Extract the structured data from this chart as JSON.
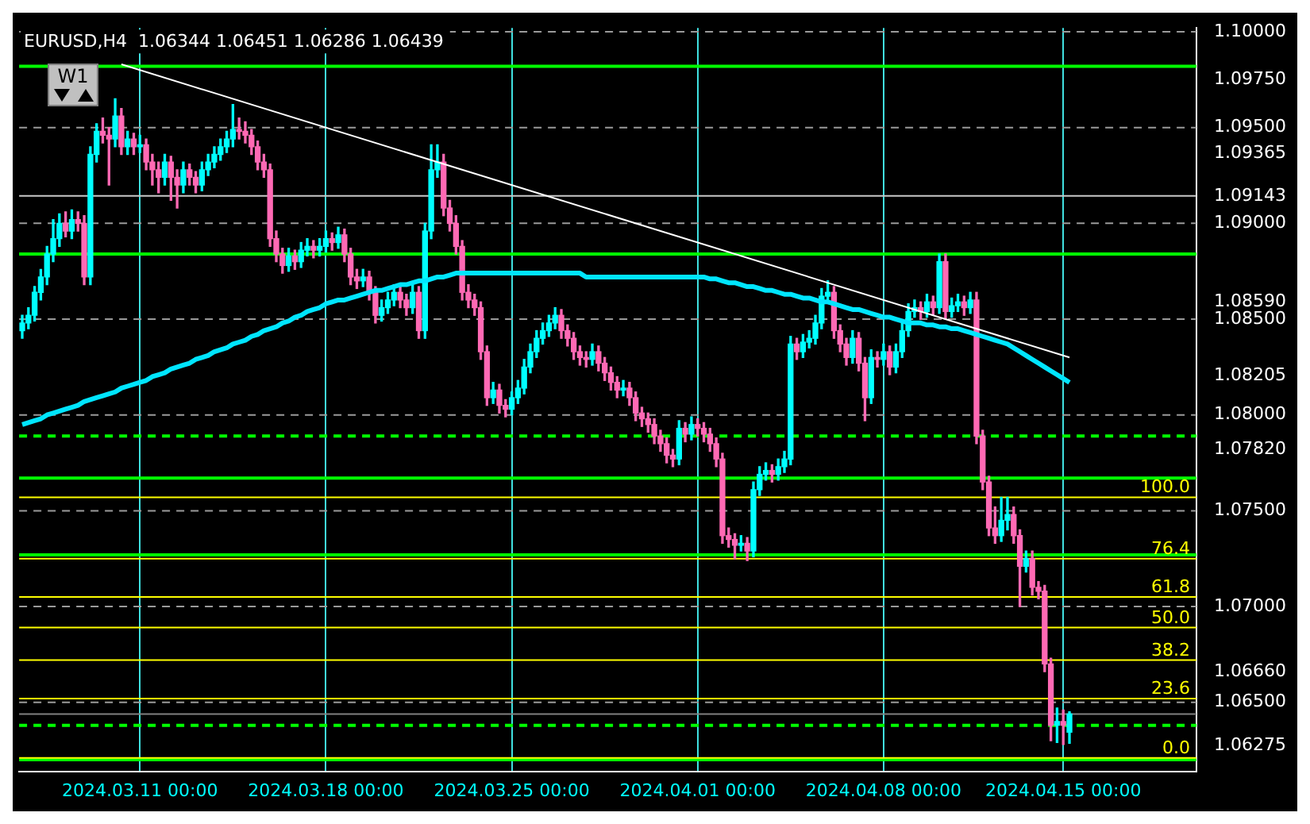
{
  "chart_data": {
    "type": "candlestick",
    "annotations": [
      "EURUSD,H4  1.06344 1.06451 1.06286 1.06439",
      "W1",
      {
        "text": "100.0",
        "y": 1.0757
      },
      {
        "text": "76.4",
        "y": 1.0725
      },
      {
        "text": "61.8",
        "y": 1.0705
      },
      {
        "text": "50.0",
        "y": 1.0689
      },
      {
        "text": "38.2",
        "y": 1.0672
      },
      {
        "text": "23.6",
        "y": 1.0652
      },
      {
        "text": "0.0",
        "y": 1.0621
      }
    ],
    "categories": [
      null,
      null,
      null,
      null,
      null,
      null,
      null,
      null,
      null,
      null,
      null,
      null,
      null,
      null,
      null,
      null,
      null,
      null,
      null,
      "2024.03.11 00:00",
      null,
      null,
      null,
      null,
      null,
      null,
      null,
      null,
      null,
      null,
      null,
      null,
      null,
      null,
      null,
      null,
      null,
      null,
      null,
      null,
      null,
      null,
      null,
      null,
      null,
      null,
      null,
      null,
      null,
      "2024.03.18 00:00",
      null,
      null,
      null,
      null,
      null,
      null,
      null,
      null,
      null,
      null,
      null,
      null,
      null,
      null,
      null,
      null,
      null,
      null,
      null,
      null,
      null,
      null,
      null,
      null,
      null,
      null,
      null,
      null,
      null,
      "2024.03.25 00:00",
      null,
      null,
      null,
      null,
      null,
      null,
      null,
      null,
      null,
      null,
      null,
      null,
      null,
      null,
      null,
      null,
      null,
      null,
      null,
      null,
      null,
      null,
      null,
      null,
      null,
      null,
      null,
      null,
      null,
      "2024.04.01 00:00",
      null,
      null,
      null,
      null,
      null,
      null,
      null,
      null,
      null,
      null,
      null,
      null,
      null,
      null,
      null,
      null,
      null,
      null,
      null,
      null,
      null,
      null,
      null,
      null,
      null,
      null,
      null,
      null,
      null,
      "2024.04.08 00:00",
      null,
      null,
      null,
      null,
      null,
      null,
      null,
      null,
      null,
      null,
      null,
      null,
      null,
      null,
      null,
      null,
      null,
      null,
      null,
      null,
      null,
      null,
      null,
      null,
      null,
      null,
      null,
      null,
      "2024.04.15 00:00",
      null,
      null,
      null,
      null,
      null,
      null,
      null,
      null,
      null,
      null,
      null,
      null,
      null,
      null,
      null,
      null,
      null,
      null,
      null,
      null,
      null
    ],
    "ohlc": [
      [
        1.0844,
        1.0852,
        1.084,
        1.0848
      ],
      [
        1.0848,
        1.0856,
        1.0845,
        1.0852
      ],
      [
        1.0852,
        1.0867,
        1.0849,
        1.0864
      ],
      [
        1.0864,
        1.0876,
        1.086,
        1.0872
      ],
      [
        1.0872,
        1.0888,
        1.0868,
        1.0884
      ],
      [
        1.0884,
        1.0902,
        1.088,
        1.0892
      ],
      [
        1.0892,
        1.0905,
        1.0888,
        1.09
      ],
      [
        1.09,
        1.0906,
        1.0893,
        1.0896
      ],
      [
        1.0896,
        1.0907,
        1.0892,
        1.0902
      ],
      [
        1.0902,
        1.0906,
        1.0896,
        1.09
      ],
      [
        1.09,
        1.0904,
        1.0868,
        1.0872
      ],
      [
        1.0872,
        1.094,
        1.0868,
        1.0936
      ],
      [
        1.0936,
        1.0952,
        1.0932,
        1.0948
      ],
      [
        1.0948,
        1.0955,
        1.0942,
        1.0946
      ],
      [
        1.0946,
        1.095,
        1.092,
        1.0944
      ],
      [
        1.0944,
        1.0965,
        1.094,
        1.0956
      ],
      [
        1.0956,
        1.096,
        1.0936,
        1.094
      ],
      [
        1.094,
        1.0948,
        1.0936,
        1.0944
      ],
      [
        1.0944,
        1.0947,
        1.0936,
        1.094
      ],
      [
        1.094,
        1.0946,
        1.0937,
        1.0941
      ],
      [
        1.0941,
        1.0944,
        1.0928,
        1.0932
      ],
      [
        1.0932,
        1.0936,
        1.092,
        1.0928
      ],
      [
        1.0928,
        1.0932,
        1.0916,
        1.0924
      ],
      [
        1.0924,
        1.0936,
        1.092,
        1.0932
      ],
      [
        1.0932,
        1.0935,
        1.0912,
        1.0924
      ],
      [
        1.0924,
        1.0928,
        1.0908,
        1.092
      ],
      [
        1.092,
        1.0932,
        1.0916,
        1.0928
      ],
      [
        1.0928,
        1.0931,
        1.092,
        1.0924
      ],
      [
        1.0924,
        1.0927,
        1.0916,
        1.092
      ],
      [
        1.092,
        1.0932,
        1.0917,
        1.0928
      ],
      [
        1.0928,
        1.0936,
        1.0925,
        1.0932
      ],
      [
        1.0932,
        1.094,
        1.0929,
        1.0936
      ],
      [
        1.0936,
        1.0944,
        1.0933,
        1.094
      ],
      [
        1.094,
        1.0948,
        1.0937,
        1.0944
      ],
      [
        1.0944,
        1.0962,
        1.094,
        1.0949
      ],
      [
        1.0949,
        1.0955,
        1.0944,
        1.0948
      ],
      [
        1.0948,
        1.0953,
        1.0942,
        1.0946
      ],
      [
        1.0946,
        1.0949,
        1.0936,
        1.094
      ],
      [
        1.094,
        1.0943,
        1.0928,
        1.0932
      ],
      [
        1.0932,
        1.0936,
        1.0924,
        1.0928
      ],
      [
        1.0928,
        1.0931,
        1.0888,
        1.0892
      ],
      [
        1.0892,
        1.0896,
        1.088,
        1.0884
      ],
      [
        1.0884,
        1.0887,
        1.0874,
        1.0878
      ],
      [
        1.0878,
        1.0887,
        1.0875,
        1.0883
      ],
      [
        1.0883,
        1.0886,
        1.0876,
        1.088
      ],
      [
        1.088,
        1.089,
        1.0877,
        1.0886
      ],
      [
        1.0886,
        1.0892,
        1.0883,
        1.0888
      ],
      [
        1.0888,
        1.0891,
        1.0882,
        1.0886
      ],
      [
        1.0886,
        1.0892,
        1.0883,
        1.0888
      ],
      [
        1.0888,
        1.0896,
        1.0885,
        1.0892
      ],
      [
        1.0892,
        1.0895,
        1.0886,
        1.089
      ],
      [
        1.089,
        1.0898,
        1.0887,
        1.0894
      ],
      [
        1.0894,
        1.0897,
        1.088,
        1.0884
      ],
      [
        1.0884,
        1.0887,
        1.0868,
        1.0872
      ],
      [
        1.0872,
        1.0876,
        1.0866,
        1.087
      ],
      [
        1.087,
        1.0876,
        1.0867,
        1.0872
      ],
      [
        1.0872,
        1.0875,
        1.086,
        1.0864
      ],
      [
        1.0864,
        1.0867,
        1.0848,
        1.0852
      ],
      [
        1.0852,
        1.086,
        1.0849,
        1.0856
      ],
      [
        1.0856,
        1.0864,
        1.0853,
        1.086
      ],
      [
        1.086,
        1.0868,
        1.0857,
        1.0864
      ],
      [
        1.0864,
        1.0867,
        1.0856,
        1.086
      ],
      [
        1.086,
        1.0863,
        1.0852,
        1.0856
      ],
      [
        1.0856,
        1.0868,
        1.0853,
        1.0864
      ],
      [
        1.0864,
        1.0867,
        1.084,
        1.0844
      ],
      [
        1.0844,
        1.09,
        1.084,
        1.0896
      ],
      [
        1.0896,
        1.0941,
        1.0892,
        1.0928
      ],
      [
        1.0928,
        1.0941,
        1.0924,
        1.0932
      ],
      [
        1.0932,
        1.0936,
        1.0904,
        1.0908
      ],
      [
        1.0908,
        1.0912,
        1.0896,
        1.09
      ],
      [
        1.09,
        1.0904,
        1.0884,
        1.0888
      ],
      [
        1.0888,
        1.0891,
        1.086,
        1.0864
      ],
      [
        1.0864,
        1.0868,
        1.0856,
        1.086
      ],
      [
        1.086,
        1.0863,
        1.0852,
        1.0856
      ],
      [
        1.0856,
        1.0859,
        1.0829,
        1.0833
      ],
      [
        1.0833,
        1.0836,
        1.0805,
        1.0809
      ],
      [
        1.0809,
        1.0817,
        1.0806,
        1.0813
      ],
      [
        1.0813,
        1.0816,
        1.0801,
        1.0805
      ],
      [
        1.0805,
        1.0808,
        1.0799,
        1.0803
      ],
      [
        1.0803,
        1.0812,
        1.08,
        1.0809
      ],
      [
        1.0809,
        1.0818,
        1.0806,
        1.0814
      ],
      [
        1.0814,
        1.0829,
        1.0811,
        1.0825
      ],
      [
        1.0825,
        1.0837,
        1.0822,
        1.0833
      ],
      [
        1.0833,
        1.0844,
        1.083,
        1.084
      ],
      [
        1.084,
        1.0848,
        1.0837,
        1.0844
      ],
      [
        1.0844,
        1.0852,
        1.0841,
        1.0848
      ],
      [
        1.0848,
        1.0856,
        1.0845,
        1.0852
      ],
      [
        1.0852,
        1.0855,
        1.084,
        1.0844
      ],
      [
        1.0844,
        1.0847,
        1.0836,
        1.084
      ],
      [
        1.084,
        1.0843,
        1.0829,
        1.0833
      ],
      [
        1.0833,
        1.0836,
        1.0826,
        1.083
      ],
      [
        1.083,
        1.0833,
        1.0825,
        1.0829
      ],
      [
        1.0829,
        1.0837,
        1.0826,
        1.0833
      ],
      [
        1.0833,
        1.0836,
        1.0823,
        1.0827
      ],
      [
        1.0827,
        1.083,
        1.0818,
        1.0822
      ],
      [
        1.0822,
        1.0825,
        1.0813,
        1.0817
      ],
      [
        1.0817,
        1.082,
        1.0809,
        1.0813
      ],
      [
        1.0813,
        1.0818,
        1.081,
        1.0814
      ],
      [
        1.0814,
        1.0817,
        1.0805,
        1.0809
      ],
      [
        1.0809,
        1.0812,
        1.0797,
        1.0801
      ],
      [
        1.0801,
        1.0804,
        1.0794,
        1.0798
      ],
      [
        1.0798,
        1.0801,
        1.0791,
        1.0795
      ],
      [
        1.0795,
        1.0798,
        1.0785,
        1.0789
      ],
      [
        1.0789,
        1.0792,
        1.0781,
        1.0785
      ],
      [
        1.0785,
        1.0788,
        1.0775,
        1.0779
      ],
      [
        1.0779,
        1.0782,
        1.0773,
        1.0777
      ],
      [
        1.0777,
        1.0797,
        1.0774,
        1.0793
      ],
      [
        1.0793,
        1.0796,
        1.0786,
        1.079
      ],
      [
        1.079,
        1.0799,
        1.0787,
        1.0795
      ],
      [
        1.0795,
        1.0798,
        1.0789,
        1.0793
      ],
      [
        1.0793,
        1.0796,
        1.0786,
        1.079
      ],
      [
        1.079,
        1.0793,
        1.0781,
        1.0785
      ],
      [
        1.0785,
        1.0788,
        1.0773,
        1.0777
      ],
      [
        1.0777,
        1.078,
        1.0733,
        1.0737
      ],
      [
        1.0737,
        1.0741,
        1.0731,
        1.0735
      ],
      [
        1.0735,
        1.0738,
        1.0725,
        1.0732
      ],
      [
        1.0732,
        1.0737,
        1.0729,
        1.0733
      ],
      [
        1.0733,
        1.0736,
        1.0724,
        1.0729
      ],
      [
        1.0729,
        1.0765,
        1.0726,
        1.0761
      ],
      [
        1.0761,
        1.0773,
        1.0758,
        1.0769
      ],
      [
        1.0769,
        1.0775,
        1.0766,
        1.0771
      ],
      [
        1.0771,
        1.0774,
        1.0765,
        1.0769
      ],
      [
        1.0769,
        1.0777,
        1.0766,
        1.0773
      ],
      [
        1.0773,
        1.0781,
        1.077,
        1.0777
      ],
      [
        1.0777,
        1.0841,
        1.0774,
        1.0837
      ],
      [
        1.0837,
        1.084,
        1.0829,
        1.0833
      ],
      [
        1.0833,
        1.0842,
        1.083,
        1.0838
      ],
      [
        1.0838,
        1.0844,
        1.0835,
        1.084
      ],
      [
        1.084,
        1.0852,
        1.0837,
        1.0848
      ],
      [
        1.0848,
        1.0866,
        1.0845,
        1.0862
      ],
      [
        1.0862,
        1.087,
        1.0859,
        1.0864
      ],
      [
        1.0864,
        1.0867,
        1.084,
        1.0844
      ],
      [
        1.0844,
        1.0847,
        1.0833,
        1.0837
      ],
      [
        1.0837,
        1.084,
        1.0826,
        1.083
      ],
      [
        1.083,
        1.0844,
        1.0827,
        1.084
      ],
      [
        1.084,
        1.0843,
        1.0823,
        1.0827
      ],
      [
        1.0827,
        1.083,
        1.0797,
        1.0809
      ],
      [
        1.0809,
        1.0834,
        1.0806,
        1.083
      ],
      [
        1.083,
        1.0833,
        1.0825,
        1.0829
      ],
      [
        1.0829,
        1.0837,
        1.0826,
        1.0833
      ],
      [
        1.0833,
        1.0836,
        1.0821,
        1.0825
      ],
      [
        1.0825,
        1.0837,
        1.0822,
        1.0833
      ],
      [
        1.0833,
        1.0848,
        1.083,
        1.0844
      ],
      [
        1.0844,
        1.0858,
        1.0841,
        1.0854
      ],
      [
        1.0854,
        1.086,
        1.0851,
        1.0856
      ],
      [
        1.0856,
        1.0859,
        1.085,
        1.0854
      ],
      [
        1.0854,
        1.0863,
        1.0851,
        1.0859
      ],
      [
        1.0859,
        1.0862,
        1.0852,
        1.0856
      ],
      [
        1.0856,
        1.0884,
        1.0853,
        1.088
      ],
      [
        1.088,
        1.0884,
        1.085,
        1.0854
      ],
      [
        1.0854,
        1.0861,
        1.0851,
        1.0857
      ],
      [
        1.0857,
        1.0863,
        1.0854,
        1.0859
      ],
      [
        1.0859,
        1.0862,
        1.0852,
        1.0856
      ],
      [
        1.0856,
        1.0864,
        1.0853,
        1.086
      ],
      [
        1.086,
        1.0864,
        1.0785,
        1.0789
      ],
      [
        1.0789,
        1.0792,
        1.0761,
        1.0765
      ],
      [
        1.0765,
        1.0768,
        1.0737,
        1.0741
      ],
      [
        1.0741,
        1.0752,
        1.0733,
        1.0737
      ],
      [
        1.0737,
        1.0757,
        1.0734,
        1.0745
      ],
      [
        1.0745,
        1.0757,
        1.074,
        1.0748
      ],
      [
        1.0748,
        1.0752,
        1.0733,
        1.0737
      ],
      [
        1.0737,
        1.074,
        1.07,
        1.0721
      ],
      [
        1.0721,
        1.0729,
        1.0718,
        1.0725
      ],
      [
        1.0725,
        1.0729,
        1.0706,
        1.071
      ],
      [
        1.071,
        1.0713,
        1.0704,
        1.0708
      ],
      [
        1.0708,
        1.0711,
        1.0666,
        1.067
      ],
      [
        1.067,
        1.0673,
        1.063,
        1.0638
      ],
      [
        1.0638,
        1.0647,
        1.0629,
        1.064
      ],
      [
        1.064,
        1.0646,
        1.0628,
        1.0638
      ],
      [
        1.06344,
        1.06451,
        1.06286,
        1.06439
      ],
      null,
      null,
      null,
      null,
      null,
      null,
      null,
      null,
      null,
      null,
      null,
      null,
      null,
      null,
      null,
      null,
      null,
      null,
      null,
      null
    ],
    "colors": [
      "#00ffff",
      "#00ffff",
      "#00ffff",
      "#00ffff",
      "#00ffff",
      "#00ffff",
      "#00ffff",
      "#ff69b4",
      "#00ffff",
      "#ff69b4",
      "#ff69b4",
      "#00ffff",
      "#00ffff",
      "#ff69b4",
      "#ff69b4",
      "#00ffff",
      "#ff69b4",
      "#00ffff",
      "#ff69b4",
      "#00ffff",
      "#ff69b4",
      "#ff69b4",
      "#ff69b4",
      "#00ffff",
      "#ff69b4",
      "#ff69b4",
      "#00ffff",
      "#ff69b4",
      "#ff69b4",
      "#00ffff",
      "#00ffff",
      "#00ffff",
      "#00ffff",
      "#00ffff",
      "#00ffff",
      "#ff69b4",
      "#ff69b4",
      "#ff69b4",
      "#ff69b4",
      "#ff69b4",
      "#ff69b4",
      "#ff69b4",
      "#ff69b4",
      "#00ffff",
      "#ff69b4",
      "#00ffff",
      "#00ffff",
      "#ff69b4",
      "#00ffff",
      "#00ffff",
      "#ff69b4",
      "#00ffff",
      "#ff69b4",
      "#ff69b4",
      "#ff69b4",
      "#00ffff",
      "#ff69b4",
      "#ff69b4",
      "#00ffff",
      "#00ffff",
      "#00ffff",
      "#ff69b4",
      "#ff69b4",
      "#00ffff",
      "#ff69b4",
      "#00ffff",
      "#00ffff",
      "#00ffff",
      "#ff69b4",
      "#ff69b4",
      "#ff69b4",
      "#ff69b4",
      "#ff69b4",
      "#ff69b4",
      "#ff69b4",
      "#ff69b4",
      "#00ffff",
      "#ff69b4",
      "#ff69b4",
      "#00ffff",
      "#00ffff",
      "#00ffff",
      "#00ffff",
      "#00ffff",
      "#00ffff",
      "#00ffff",
      "#00ffff",
      "#ff69b4",
      "#ff69b4",
      "#ff69b4",
      "#ff69b4",
      "#ff69b4",
      "#00ffff",
      "#ff69b4",
      "#ff69b4",
      "#ff69b4",
      "#ff69b4",
      "#00ffff",
      "#ff69b4",
      "#ff69b4",
      "#ff69b4",
      "#ff69b4",
      "#ff69b4",
      "#ff69b4",
      "#ff69b4",
      "#ff69b4",
      "#00ffff",
      "#ff69b4",
      "#00ffff",
      "#ff69b4",
      "#ff69b4",
      "#ff69b4",
      "#ff69b4",
      "#ff69b4",
      "#ff69b4",
      "#ff69b4",
      "#00ffff",
      "#ff69b4",
      "#00ffff",
      "#00ffff",
      "#00ffff",
      "#ff69b4",
      "#00ffff",
      "#00ffff",
      "#00ffff",
      "#ff69b4",
      "#00ffff",
      "#00ffff",
      "#00ffff",
      "#00ffff",
      "#00ffff",
      "#ff69b4",
      "#ff69b4",
      "#ff69b4",
      "#00ffff",
      "#ff69b4",
      "#ff69b4",
      "#00ffff",
      "#ff69b4",
      "#00ffff",
      "#ff69b4",
      "#00ffff",
      "#00ffff",
      "#00ffff",
      "#00ffff",
      "#ff69b4",
      "#00ffff",
      "#ff69b4",
      "#00ffff",
      "#ff69b4",
      "#00ffff",
      "#00ffff",
      "#ff69b4",
      "#00ffff",
      "#ff69b4",
      "#ff69b4",
      "#ff69b4",
      "#ff69b4",
      "#00ffff",
      "#00ffff",
      "#ff69b4",
      "#ff69b4",
      "#00ffff",
      "#ff69b4",
      "#ff69b4",
      "#ff69b4",
      "#ff69b4",
      "#00ffff",
      "#ff69b4",
      "#00ffff",
      null,
      null,
      null,
      null,
      null,
      null,
      null,
      null,
      null,
      null,
      null,
      null,
      null,
      null,
      null,
      null,
      null,
      null,
      null,
      null
    ],
    "series": [
      {
        "type": "line",
        "color": "#00e5ff",
        "values": [
          1.0795,
          1.0796,
          1.0797,
          1.0798,
          1.08,
          1.0801,
          1.0802,
          1.0803,
          1.0804,
          1.0805,
          1.0807,
          1.0808,
          1.0809,
          1.081,
          1.0811,
          1.0812,
          1.0814,
          1.0815,
          1.0816,
          1.0817,
          1.0818,
          1.082,
          1.0821,
          1.0822,
          1.0824,
          1.0825,
          1.0826,
          1.0827,
          1.0829,
          1.083,
          1.0831,
          1.0833,
          1.0834,
          1.0835,
          1.0837,
          1.0838,
          1.0839,
          1.0841,
          1.0842,
          1.0844,
          1.0845,
          1.0846,
          1.0848,
          1.0849,
          1.0851,
          1.0852,
          1.0854,
          1.0855,
          1.0856,
          1.0858,
          1.0859,
          1.086,
          1.086,
          1.0861,
          1.0862,
          1.0863,
          1.0864,
          1.0865,
          1.0865,
          1.0866,
          1.0867,
          1.0868,
          1.0868,
          1.0869,
          1.087,
          1.087,
          1.0871,
          1.0872,
          1.0872,
          1.0873,
          1.0874,
          1.0874,
          1.0874,
          1.0874,
          1.0874,
          1.0874,
          1.0874,
          1.0874,
          1.0874,
          1.0874,
          1.0874,
          1.0874,
          1.0874,
          1.0874,
          1.0874,
          1.0874,
          1.0874,
          1.0874,
          1.0874,
          1.0874,
          1.0874,
          1.0872,
          1.0872,
          1.0872,
          1.0872,
          1.0872,
          1.0872,
          1.0872,
          1.0872,
          1.0872,
          1.0872,
          1.0872,
          1.0872,
          1.0872,
          1.0872,
          1.0872,
          1.0872,
          1.0872,
          1.0872,
          1.0872,
          1.0872,
          1.0871,
          1.0871,
          1.087,
          1.0869,
          1.0869,
          1.0868,
          1.0867,
          1.0867,
          1.0866,
          1.0865,
          1.0865,
          1.0864,
          1.0863,
          1.0863,
          1.0862,
          1.0861,
          1.0861,
          1.086,
          1.0859,
          1.0859,
          1.0858,
          1.0857,
          1.0856,
          1.0855,
          1.0855,
          1.0854,
          1.0853,
          1.0852,
          1.0851,
          1.0851,
          1.085,
          1.0849,
          1.0848,
          1.0848,
          1.0848,
          1.0847,
          1.0847,
          1.0846,
          1.0846,
          1.0845,
          1.0845,
          1.0844,
          1.0843,
          1.0842,
          1.0841,
          1.084,
          1.0839,
          1.0838,
          1.0837,
          1.0835,
          1.0833,
          1.0831,
          1.0829,
          1.0827,
          1.0825,
          1.0823,
          1.0821,
          1.0819,
          1.0817,
          null,
          null,
          null,
          null,
          null,
          null,
          null,
          null,
          null,
          null,
          null,
          null,
          null,
          null,
          null,
          null,
          null,
          null,
          null,
          null
        ]
      },
      {
        "type": "line",
        "color": "#ffffff",
        "values": [
          null,
          null,
          null,
          null,
          null,
          null,
          null,
          null,
          null,
          null,
          null,
          null,
          null,
          null,
          null,
          null,
          1.0983,
          null,
          null,
          null,
          null,
          null,
          null,
          null,
          null,
          null,
          null,
          null,
          null,
          null,
          null,
          null,
          null,
          null,
          null,
          null,
          null,
          null,
          null,
          null,
          null,
          null,
          null,
          null,
          null,
          null,
          null,
          null,
          null,
          null,
          null,
          null,
          null,
          null,
          null,
          null,
          null,
          null,
          null,
          null,
          null,
          null,
          null,
          null,
          null,
          null,
          null,
          null,
          null,
          null,
          null,
          null,
          null,
          null,
          null,
          null,
          null,
          null,
          null,
          null,
          null,
          null,
          null,
          null,
          null,
          null,
          null,
          null,
          null,
          null,
          null,
          null,
          null,
          null,
          null,
          null,
          null,
          null,
          null,
          null,
          null,
          null,
          null,
          null,
          null,
          null,
          null,
          null,
          null,
          null,
          null,
          null,
          null,
          null,
          null,
          null,
          null,
          null,
          null,
          null,
          null,
          null,
          null,
          null,
          null,
          null,
          null,
          null,
          null,
          null,
          null,
          null,
          null,
          null,
          null,
          null,
          null,
          null,
          null,
          null,
          null,
          null,
          null,
          null,
          null,
          null,
          null,
          null,
          null,
          null,
          null,
          null,
          null,
          null,
          null,
          null,
          null,
          null,
          null,
          null,
          null,
          null,
          null,
          null,
          null,
          null,
          null,
          null,
          null,
          1.083,
          null,
          null,
          null,
          null,
          null,
          null,
          null,
          null,
          null,
          null,
          null,
          null,
          null,
          null,
          null,
          null,
          null,
          null,
          null,
          null
        ]
      }
    ],
    "marker": "none",
    "ylim": [
      1.0614,
      1.1002
    ],
    "yticks": [
      {
        "value": 1.1,
        "label": "1.10000"
      },
      {
        "value": 1.0975,
        "label": "1.09750"
      },
      {
        "value": 1.095,
        "label": "1.09500"
      },
      {
        "value": 1.09365,
        "label": "1.09365"
      },
      {
        "value": 1.09143,
        "label": "1.09143"
      },
      {
        "value": 1.09,
        "label": "1.09000"
      },
      {
        "value": 1.0859,
        "label": "1.08590"
      },
      {
        "value": 1.085,
        "label": "1.08500"
      },
      {
        "value": 1.08205,
        "label": "1.08205"
      },
      {
        "value": 1.08,
        "label": "1.08000"
      },
      {
        "value": 1.0782,
        "label": "1.07820"
      },
      {
        "value": 1.075,
        "label": "1.07500"
      },
      {
        "value": 1.07,
        "label": "1.07000"
      },
      {
        "value": 1.0666,
        "label": "1.06660"
      },
      {
        "value": 1.065,
        "label": "1.06500"
      },
      {
        "value": 1.06275,
        "label": "1.06275"
      }
    ],
    "grid": "x",
    "ref_lines": [
      {
        "axis": "y",
        "value": 1.1,
        "color": "#9a9a9a",
        "line_style": "dashed"
      },
      {
        "axis": "y",
        "value": 1.095,
        "color": "#9a9a9a",
        "line_style": "dashed"
      },
      {
        "axis": "y",
        "value": 1.09,
        "color": "#9a9a9a",
        "line_style": "dashed"
      },
      {
        "axis": "y",
        "value": 1.085,
        "color": "#9a9a9a",
        "line_style": "dashed"
      },
      {
        "axis": "y",
        "value": 1.08,
        "color": "#9a9a9a",
        "line_style": "dashed"
      },
      {
        "axis": "y",
        "value": 1.075,
        "color": "#9a9a9a",
        "line_style": "dashed"
      },
      {
        "axis": "y",
        "value": 1.07,
        "color": "#9a9a9a",
        "line_style": "dashed"
      },
      {
        "axis": "y",
        "value": 1.065,
        "color": "#9a9a9a",
        "line_style": "dashed"
      },
      {
        "axis": "y",
        "value": 1.09143,
        "color": "#c8c8c8",
        "line_style": "solid"
      },
      {
        "axis": "y",
        "value": 1.06439,
        "color": "#808080",
        "line_style": "solid"
      },
      {
        "axis": "y",
        "value": 1.0982,
        "color": "#00ff00",
        "line_style": "solid"
      },
      {
        "axis": "y",
        "value": 1.0767,
        "color": "#00ff00",
        "line_style": "solid"
      },
      {
        "axis": "y",
        "value": 1.0789,
        "color": "#00ff00",
        "line_style": "dashed"
      },
      {
        "axis": "y",
        "value": 1.0884,
        "color": "#00ff00",
        "line_style": "solid"
      },
      {
        "axis": "y",
        "value": 1.0727,
        "color": "#00ff00",
        "line_style": "solid"
      },
      {
        "axis": "y",
        "value": 1.062,
        "color": "#00ff00",
        "line_style": "solid"
      },
      {
        "axis": "y",
        "value": 1.0638,
        "color": "#00ff00",
        "line_style": "dashed"
      },
      {
        "axis": "y",
        "value": 1.0757,
        "color": "#ffff00",
        "line_style": "solid"
      },
      {
        "axis": "y",
        "value": 1.0725,
        "color": "#ffff00",
        "line_style": "solid"
      },
      {
        "axis": "y",
        "value": 1.0705,
        "color": "#ffff00",
        "line_style": "solid"
      },
      {
        "axis": "y",
        "value": 1.0689,
        "color": "#ffff00",
        "line_style": "solid"
      },
      {
        "axis": "y",
        "value": 1.0672,
        "color": "#ffff00",
        "line_style": "solid"
      },
      {
        "axis": "y",
        "value": 1.0652,
        "color": "#ffff00",
        "line_style": "solid"
      },
      {
        "axis": "y",
        "value": 1.0621,
        "color": "#ffff00",
        "line_style": "solid"
      }
    ]
  }
}
